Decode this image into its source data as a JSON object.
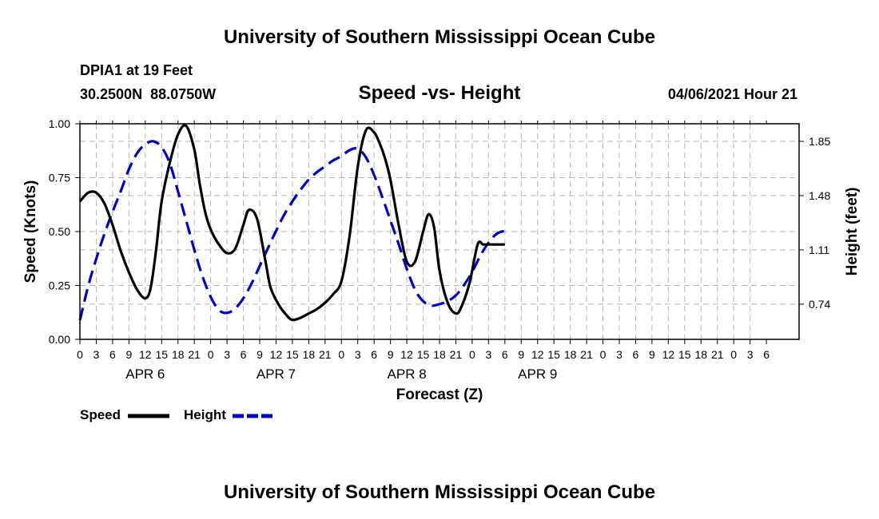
{
  "header": {
    "title": "University of Southern Mississippi Ocean Cube",
    "station": "DPIA1 at 19 Feet",
    "coords": "30.2500N  88.0750W",
    "timestamp": "04/06/2021 Hour 21"
  },
  "footer": {
    "title": "University of Southern Mississippi Ocean Cube"
  },
  "chart_data": {
    "type": "line",
    "title": "Speed -vs- Height",
    "xlabel": "Forecast (Z)",
    "ylabel": "Speed (Knots)",
    "y2label": "Height (feet)",
    "grid": true,
    "x_unit": "hours since APR 6 00Z",
    "xlim": [
      -6,
      126
    ],
    "x_ticks": [
      {
        "x": -6,
        "label": "0"
      },
      {
        "x": -3,
        "label": "3"
      },
      {
        "x": 0,
        "label": "6"
      },
      {
        "x": 3,
        "label": "9"
      },
      {
        "x": 6,
        "label": "12"
      },
      {
        "x": 9,
        "label": "15"
      },
      {
        "x": 12,
        "label": "18"
      },
      {
        "x": 15,
        "label": "21"
      },
      {
        "x": 18,
        "label": "0"
      },
      {
        "x": 21,
        "label": "3"
      },
      {
        "x": 24,
        "label": "6"
      },
      {
        "x": 27,
        "label": "9"
      },
      {
        "x": 30,
        "label": "12"
      },
      {
        "x": 33,
        "label": "15"
      },
      {
        "x": 36,
        "label": "18"
      },
      {
        "x": 39,
        "label": "21"
      },
      {
        "x": 42,
        "label": "0"
      },
      {
        "x": 45,
        "label": "3"
      },
      {
        "x": 48,
        "label": "6"
      },
      {
        "x": 51,
        "label": "9"
      },
      {
        "x": 54,
        "label": "12"
      },
      {
        "x": 57,
        "label": "15"
      },
      {
        "x": 60,
        "label": "18"
      },
      {
        "x": 63,
        "label": "21"
      },
      {
        "x": 66,
        "label": "0"
      },
      {
        "x": 69,
        "label": "3"
      },
      {
        "x": 72,
        "label": "6"
      },
      {
        "x": 75,
        "label": "9"
      },
      {
        "x": 78,
        "label": "12"
      },
      {
        "x": 81,
        "label": "15"
      },
      {
        "x": 84,
        "label": "18"
      },
      {
        "x": 87,
        "label": "21"
      },
      {
        "x": 90,
        "label": "0"
      },
      {
        "x": 93,
        "label": "3"
      },
      {
        "x": 96,
        "label": "6"
      },
      {
        "x": 99,
        "label": "9"
      },
      {
        "x": 102,
        "label": "12"
      },
      {
        "x": 105,
        "label": "15"
      },
      {
        "x": 108,
        "label": "18"
      },
      {
        "x": 111,
        "label": "21"
      },
      {
        "x": 114,
        "label": "0"
      },
      {
        "x": 117,
        "label": "3"
      },
      {
        "x": 120,
        "label": "6"
      }
    ],
    "day_labels": [
      {
        "x": 6,
        "label": "APR 6"
      },
      {
        "x": 30,
        "label": "APR 7"
      },
      {
        "x": 54,
        "label": "APR 8"
      },
      {
        "x": 78,
        "label": "APR 9"
      }
    ],
    "y_left": {
      "min": 0,
      "max": 1,
      "ticks": [
        "0.00",
        "0.25",
        "0.50",
        "0.75",
        "1.00"
      ]
    },
    "y_right": {
      "min": 0.5,
      "max": 1.97,
      "ticks": [
        "0.74",
        "1.11",
        "1.48",
        "1.85"
      ]
    },
    "series": [
      {
        "name": "Speed",
        "axis": "left",
        "color": "#000000",
        "dash": "solid",
        "x": [
          -6,
          -4.5,
          -3,
          -1.5,
          0,
          1.5,
          3,
          4.5,
          6,
          7,
          8,
          9,
          10.5,
          12,
          13.5,
          15,
          16,
          17,
          18,
          19.5,
          21,
          22.5,
          24,
          25,
          26.5,
          28,
          29,
          30.5,
          32,
          33,
          34.5,
          36,
          37.5,
          39,
          40.5,
          42,
          43.5,
          45,
          46.5,
          48,
          49,
          50,
          51,
          52.5,
          54,
          55.5,
          57,
          58,
          59,
          60,
          61.5,
          63,
          64,
          65.5,
          67,
          68,
          69,
          70.5,
          72
        ],
        "values": [
          0.64,
          0.68,
          0.68,
          0.63,
          0.53,
          0.41,
          0.31,
          0.23,
          0.19,
          0.24,
          0.42,
          0.64,
          0.82,
          0.95,
          0.99,
          0.88,
          0.72,
          0.59,
          0.51,
          0.44,
          0.4,
          0.42,
          0.53,
          0.6,
          0.56,
          0.37,
          0.24,
          0.16,
          0.11,
          0.09,
          0.1,
          0.12,
          0.14,
          0.17,
          0.21,
          0.27,
          0.48,
          0.8,
          0.97,
          0.96,
          0.91,
          0.84,
          0.74,
          0.53,
          0.36,
          0.36,
          0.5,
          0.58,
          0.52,
          0.32,
          0.17,
          0.12,
          0.15,
          0.26,
          0.44,
          0.44,
          0.44,
          0.44,
          0.44
        ]
      },
      {
        "name": "Height",
        "axis": "right",
        "color": "#0000cc",
        "dash": "dashed",
        "x": [
          -6,
          -4.5,
          -3,
          -1.5,
          0,
          1.5,
          3,
          4.5,
          6,
          7.5,
          9,
          10.5,
          12,
          13.5,
          15,
          16.5,
          18,
          19.5,
          21,
          22.5,
          24,
          25.5,
          27,
          28.5,
          30,
          31.5,
          33,
          34.5,
          36,
          37.5,
          39,
          40.5,
          42,
          43.5,
          45,
          46.5,
          48,
          49.5,
          51,
          52.5,
          54,
          55.5,
          57,
          58.5,
          60,
          61.5,
          63,
          64.5,
          66,
          67.5,
          69,
          70.5,
          72
        ],
        "values": [
          0.63,
          0.86,
          1.05,
          1.22,
          1.37,
          1.51,
          1.66,
          1.77,
          1.83,
          1.85,
          1.81,
          1.7,
          1.51,
          1.31,
          1.11,
          0.93,
          0.79,
          0.7,
          0.68,
          0.71,
          0.78,
          0.88,
          1.0,
          1.12,
          1.24,
          1.35,
          1.44,
          1.52,
          1.59,
          1.64,
          1.68,
          1.72,
          1.75,
          1.79,
          1.8,
          1.74,
          1.62,
          1.47,
          1.31,
          1.15,
          0.98,
          0.84,
          0.76,
          0.73,
          0.74,
          0.76,
          0.8,
          0.87,
          0.96,
          1.07,
          1.16,
          1.22,
          1.24
        ]
      }
    ],
    "legend": {
      "position": "bottom-left",
      "entries": [
        {
          "label": "Speed",
          "color": "#000000",
          "dash": "solid"
        },
        {
          "label": "Height",
          "color": "#0000cc",
          "dash": "dashed"
        }
      ]
    }
  }
}
